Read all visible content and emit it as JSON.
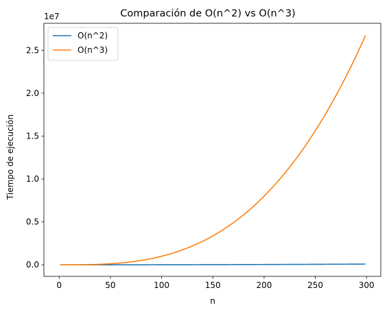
{
  "chart_data": {
    "type": "line",
    "title": "Comparación de O(n^2) vs O(n^3)",
    "xlabel": "n",
    "ylabel": "Tiempo de ejecución",
    "y_offset_label": "1e7",
    "y_scale": 10000000,
    "xlim": [
      -14.9,
      313.9
    ],
    "ylim": [
      -1340000,
      28140000
    ],
    "x_ticks": [
      0,
      50,
      100,
      150,
      200,
      250,
      300
    ],
    "x_tick_labels": [
      "0",
      "50",
      "100",
      "150",
      "200",
      "250",
      "300"
    ],
    "y_ticks": [
      0,
      5000000,
      10000000,
      15000000,
      20000000,
      25000000
    ],
    "y_tick_labels": [
      "0.0",
      "0.5",
      "1.0",
      "1.5",
      "2.0",
      "2.5"
    ],
    "grid": false,
    "legend_position": "upper-left",
    "x_domain": [
      1,
      299
    ],
    "series": [
      {
        "name": "O(n^2)",
        "color": "#1f77b4",
        "exponent": 2
      },
      {
        "name": "O(n^3)",
        "color": "#ff7f0e",
        "exponent": 3
      }
    ]
  }
}
